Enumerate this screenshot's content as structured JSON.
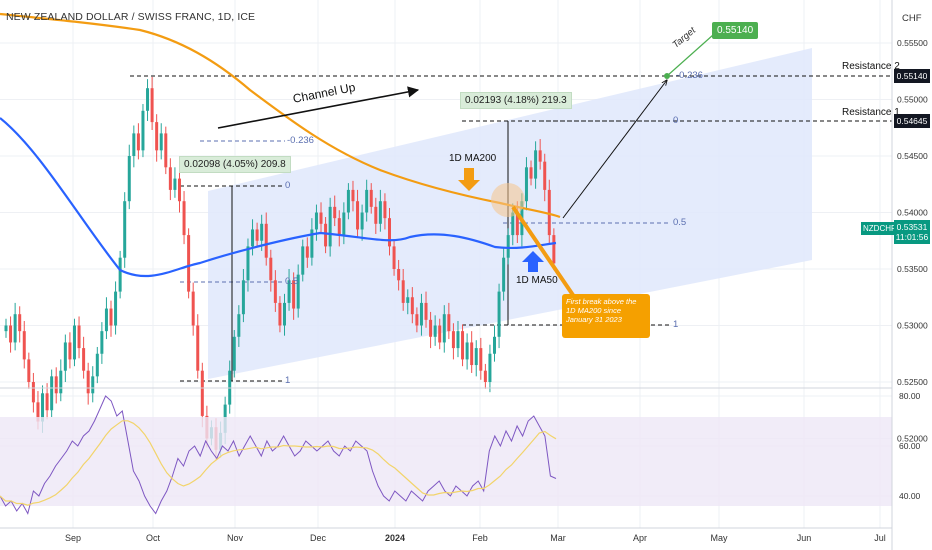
{
  "header": {
    "title": "NEW ZEALAND DOLLAR / SWISS FRANC, 1D, ICE",
    "currency": "CHF"
  },
  "colors": {
    "bg": "#ffffff",
    "grid": "#eef0f4",
    "up": "#26a69a",
    "down": "#ef5350",
    "ma200": "#f39c12",
    "ma50": "#2962ff",
    "channel": "#dfe8fb",
    "rsi": "#7e57c2",
    "rsi_ma": "#f2d46b",
    "rsi_band": "#ede7f6",
    "target": "#4caf50",
    "note_bg": "#f5a000",
    "price_tag": "#089981"
  },
  "chart_data": [
    {
      "type": "candlestick",
      "symbol": "NZDCHF",
      "title": "NEW ZEALAND DOLLAR / SWISS FRANC, 1D, ICE",
      "x_ticks": [
        "Sep",
        "Oct",
        "Nov",
        "Dec",
        "2024",
        "Feb",
        "Mar",
        "Apr",
        "May",
        "Jun",
        "Jul"
      ],
      "y_ticks": [
        "0.55500",
        "0.55000",
        "0.54500",
        "0.54000",
        "0.53500",
        "0.53000",
        "0.52500",
        "0.52000"
      ],
      "ylim": [
        0.5175,
        0.5585
      ],
      "key_prices": [
        {
          "name": "Resistance 2",
          "price": "0.55140"
        },
        {
          "name": "Resistance 1",
          "price": "0.54645"
        },
        {
          "name": "NZDCHF",
          "price": "0.53531",
          "countdown": "11:01:56"
        }
      ],
      "target": {
        "label": "Target",
        "price": "0.55140"
      },
      "fib_labels": [
        "-0.236",
        "0",
        "0.5",
        "1"
      ],
      "measurements": [
        {
          "label": "0.02098 (4.05%) 209.8"
        },
        {
          "label": "0.02193 (4.18%) 219.3"
        }
      ],
      "annotations": [
        {
          "text": "Channel Up"
        },
        {
          "text": "1D MA200"
        },
        {
          "text": "1D MA50"
        },
        {
          "text": "First break above the 1D MA200 since January 31 2023"
        }
      ],
      "series": [
        {
          "name": "1D MA200"
        },
        {
          "name": "1D MA50"
        }
      ]
    },
    {
      "type": "line",
      "indicator": "RSI",
      "y_ticks": [
        "80.00",
        "60.00",
        "40.00"
      ],
      "ylim": [
        26,
        84
      ],
      "band": [
        30,
        70
      ]
    }
  ]
}
